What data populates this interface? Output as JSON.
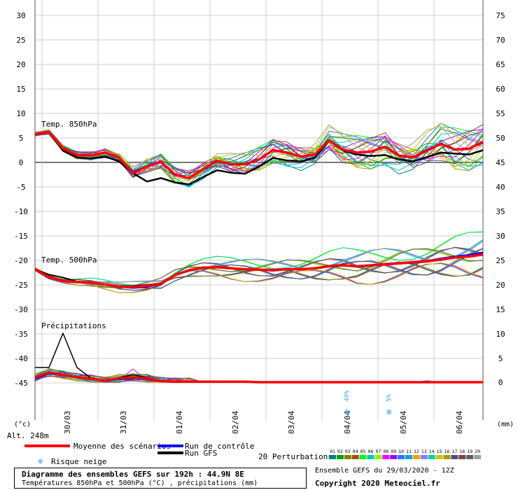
{
  "chart_data": {
    "type": "line",
    "left_axis_unit": "(°c)",
    "right_axis_unit": "(mm)",
    "altitude": "Alt. 248m",
    "left_ticks": [
      30,
      25,
      20,
      15,
      10,
      5,
      0,
      -5,
      -10,
      -15,
      -20,
      -25,
      -30,
      -35,
      -40,
      -45
    ],
    "right_ticks": [
      75,
      70,
      65,
      60,
      55,
      50,
      45,
      40,
      35,
      30,
      25,
      20,
      15,
      10,
      5,
      0
    ],
    "left_ylim": [
      -45,
      30
    ],
    "right_ylim": [
      0,
      75
    ],
    "x_labels": [
      "30/03",
      "31/03",
      "01/04",
      "02/04",
      "03/04",
      "04/04",
      "05/04",
      "06/04"
    ],
    "grid": true,
    "section_labels": {
      "t850": "Temp. 850hPa",
      "t500": "Temp. 500hPa",
      "precip": "Précipitations"
    },
    "snow_risk": [
      {
        "label": "40%",
        "x_step": 23
      },
      {
        "label": "5%",
        "x_step": 26
      }
    ],
    "series_850": {
      "mean": [
        5.8,
        6.2,
        2.8,
        1.5,
        1.4,
        2.0,
        1.0,
        -2.2,
        -0.8,
        0.1,
        -2.5,
        -3.2,
        -1.4,
        0.3,
        -0.4,
        -0.4,
        0.6,
        2.5,
        2.0,
        1.2,
        1.6,
        4.5,
        2.6,
        2.0,
        2.2,
        3.2,
        1.4,
        1.0,
        2.4,
        3.8,
        2.6,
        2.8,
        4.2
      ],
      "control": [
        5.8,
        6.2,
        2.8,
        1.5,
        1.4,
        2.0,
        1.0,
        -2.0,
        -0.8,
        0.1,
        -2.5,
        -3.2,
        -1.4,
        0.3,
        -0.4,
        -0.4,
        0.6,
        2.5,
        2.0,
        1.2,
        1.6,
        4.5,
        2.6,
        2.0,
        2.2,
        3.2,
        1.4,
        1.0,
        2.6,
        3.8,
        2.6,
        2.8,
        4.0
      ],
      "gfs": [
        5.8,
        6.2,
        2.4,
        1.0,
        0.8,
        1.2,
        0.2,
        -2.2,
        -3.9,
        -3.2,
        -4.1,
        -4.5,
        -3.0,
        -1.6,
        -2.1,
        -2.3,
        -0.8,
        0.9,
        0.4,
        0.2,
        1.0,
        4.4,
        2.4,
        1.6,
        1.3,
        1.5,
        0.6,
        0.2,
        1.1,
        2.0,
        1.8,
        1.6,
        2.5
      ]
    },
    "series_500": {
      "mean": [
        -21.8,
        -23.4,
        -24.2,
        -24.4,
        -24.5,
        -24.9,
        -25.4,
        -25.4,
        -25.2,
        -24.7,
        -23.0,
        -22.0,
        -21.5,
        -21.4,
        -21.6,
        -21.8,
        -21.9,
        -22.0,
        -21.8,
        -21.8,
        -21.6,
        -21.2,
        -21.0,
        -21.2,
        -21.0,
        -20.8,
        -20.6,
        -20.4,
        -20.2,
        -19.8,
        -19.4,
        -19.2,
        -18.8
      ],
      "control": [
        -21.8,
        -23.4,
        -24.2,
        -24.4,
        -24.5,
        -24.9,
        -25.4,
        -25.6,
        -25.4,
        -24.8,
        -23.0,
        -22.0,
        -21.4,
        -21.4,
        -21.6,
        -21.8,
        -21.9,
        -22.1,
        -21.8,
        -21.8,
        -21.6,
        -21.1,
        -20.9,
        -21.3,
        -21.1,
        -20.7,
        -20.5,
        -20.3,
        -20.1,
        -19.6,
        -19.2,
        -18.9,
        -18.4
      ],
      "gfs": [
        -21.8,
        -22.9,
        -23.5,
        -24.3,
        -24.6,
        -24.9,
        -25.3,
        -25.2,
        -25.0,
        -24.7,
        -23.0,
        -22.0,
        -21.5,
        -21.4,
        -21.6,
        -21.8,
        -21.9,
        -22.0,
        -21.9,
        -21.8,
        -21.6,
        -21.3,
        -21.1,
        -21.3,
        -21.1,
        -20.9,
        -20.7,
        -20.5,
        -20.3,
        -19.9,
        -19.5,
        -19.3,
        -18.9
      ]
    },
    "series_precip": {
      "mean": [
        1.0,
        2.0,
        1.5,
        1.0,
        0.7,
        0.3,
        0.8,
        1.0,
        0.8,
        0.2,
        0.1,
        0.1,
        0.1,
        0.1,
        0.1,
        0.1,
        0.0,
        0.0,
        0.0,
        0.0,
        0.0,
        0.0,
        0.0,
        0.0,
        0.0,
        0.0,
        0.0,
        0.0,
        0.0,
        0.0,
        0.0,
        0.0,
        0.0
      ],
      "control": [
        0.8,
        1.8,
        1.4,
        1.0,
        0.6,
        0.3,
        0.6,
        0.8,
        0.6,
        0.2,
        0.1,
        0.1,
        0.1,
        0.1,
        0.1,
        0.1,
        0.0,
        0.0,
        0.0,
        0.0,
        0.0,
        0.0,
        0.0,
        0.0,
        0.0,
        0.0,
        0.0,
        0.0,
        0.0,
        0.0,
        0.0,
        0.0,
        0.0
      ],
      "gfs": [
        3.0,
        3.0,
        10.0,
        3.0,
        0.8,
        0.3,
        1.0,
        1.5,
        1.0,
        0.2,
        0.1,
        0.1,
        0.1,
        0.1,
        0.1,
        0.1,
        0.0,
        0.0,
        0.0,
        0.0,
        0.0,
        0.0,
        0.0,
        0.0,
        0.0,
        0.0,
        0.0,
        0.0,
        0.0,
        0.0,
        0.0,
        0.0,
        0.0
      ]
    },
    "perturbation_colors": [
      "#007f7f",
      "#00a000",
      "#7f7f00",
      "#a05000",
      "#00ff00",
      "#00c8c8",
      "#7fff00",
      "#ff00ff",
      "#a000ff",
      "#3070ff",
      "#00a0ff",
      "#ffa000",
      "#8080ff",
      "#00d0a0",
      "#c8c800",
      "#a0a000",
      "#505080",
      "#804040",
      "#606060",
      "#a0a0a0"
    ],
    "perturbation_ids": [
      "01",
      "02",
      "03",
      "04",
      "05",
      "06",
      "07",
      "08",
      "09",
      "10",
      "11",
      "12",
      "13",
      "14",
      "15",
      "16",
      "17",
      "18",
      "19",
      "20"
    ],
    "legend": {
      "mean": "Moyenne des scénarios",
      "control": "Run de contrôle",
      "gfs": "Run GFS",
      "snow": "Risque neige",
      "perturbations": "20 Perturbations"
    },
    "colors": {
      "mean": "#ff0000",
      "control": "#0000ff",
      "gfs": "#000000",
      "snow": "#4aa3df"
    }
  },
  "footer": {
    "title": "Diagramme des ensembles GEFS sur 192h : 44.9N 8E",
    "subtitle": "Températures 850hPa et 500hPa (°C) , précipitations (mm)",
    "run": "Ensemble GEFS du 29/03/2020 - 12Z",
    "copyright": "Copyright 2020 Meteociel.fr"
  }
}
